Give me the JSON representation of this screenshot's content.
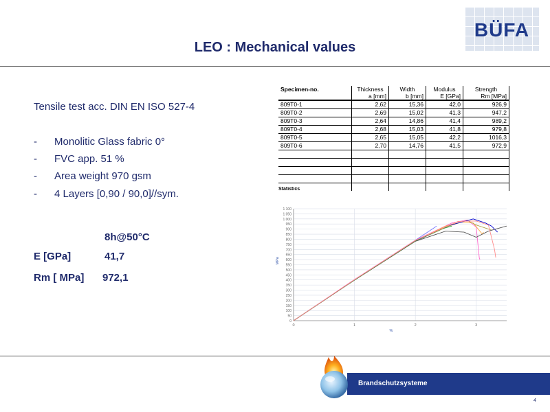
{
  "slide": {
    "title": "LEO : Mechanical  values",
    "logo_text": "BÜFA",
    "page_number": "4",
    "footer": "Brandschutzsysteme"
  },
  "content": {
    "test_line": "Tensile test acc. DIN EN ISO 527-4",
    "bullets": [
      "Monolitic Glass fabric 0°",
      "FVC app. 51 %",
      "Area weight  970 gsm",
      "4 Layers   [0,90 / 90,0]//sym."
    ],
    "condition": "8h@50°C",
    "e_label": "E [GPa]",
    "e_value": "41,7",
    "rm_label": "Rm [ MPa]",
    "rm_value": "972,1"
  },
  "table": {
    "headers": [
      {
        "line1": "Specimen-no.",
        "line2": ""
      },
      {
        "line1": "Thickness",
        "line2": "a [mm]"
      },
      {
        "line1": "Width",
        "line2": "b [mm]"
      },
      {
        "line1": "Modulus",
        "line2": "E [GPa]"
      },
      {
        "line1": "Strength",
        "line2": "Rm [MPa]"
      }
    ],
    "rows": [
      [
        "809T0-1",
        "2,62",
        "15,36",
        "42,0",
        "926,9"
      ],
      [
        "809T0-2",
        "2,69",
        "15,02",
        "41,3",
        "947,2"
      ],
      [
        "809T0-3",
        "2,64",
        "14,86",
        "41,4",
        "989,2"
      ],
      [
        "809T0-4",
        "2,68",
        "15,03",
        "41,8",
        "979,8"
      ],
      [
        "809T0-5",
        "2,65",
        "15,05",
        "42,2",
        "1016,3"
      ],
      [
        "809T0-6",
        "2,70",
        "14,76",
        "41,5",
        "972,9"
      ]
    ],
    "empty_rows": 5,
    "statistics_label": "Statistics"
  },
  "chart_data": {
    "type": "line",
    "title": "",
    "xlabel": "%",
    "ylabel": "MPa",
    "xlim": [
      0,
      3.5
    ],
    "ylim": [
      0,
      1100
    ],
    "x_ticks": [
      "0",
      "1",
      "2",
      "3"
    ],
    "y_ticks": [
      "0",
      "50",
      "100",
      "150",
      "200",
      "250",
      "300",
      "350",
      "400",
      "450",
      "500",
      "550",
      "600",
      "650",
      "700",
      "750",
      "800",
      "850",
      "900",
      "950",
      "1 000",
      "1 050",
      "1 100"
    ],
    "grid": true,
    "series": [
      {
        "color": "#7777ff",
        "points": [
          [
            0,
            0
          ],
          [
            1,
            400
          ],
          [
            2,
            790
          ],
          [
            2.3,
            910
          ],
          [
            2.35,
            930
          ]
        ]
      },
      {
        "color": "#ff66cc",
        "points": [
          [
            0,
            0
          ],
          [
            1,
            405
          ],
          [
            2,
            790
          ],
          [
            2.6,
            960
          ],
          [
            2.85,
            990
          ],
          [
            3.0,
            920
          ],
          [
            3.05,
            620
          ],
          [
            3.06,
            600
          ]
        ]
      },
      {
        "color": "#ffaa44",
        "points": [
          [
            0,
            0
          ],
          [
            1,
            400
          ],
          [
            2,
            785
          ],
          [
            2.5,
            930
          ],
          [
            2.75,
            970
          ],
          [
            2.95,
            960
          ],
          [
            3.1,
            850
          ],
          [
            3.12,
            870
          ]
        ]
      },
      {
        "color": "#b3a34a",
        "points": [
          [
            0,
            0
          ],
          [
            1,
            398
          ],
          [
            2,
            780
          ],
          [
            2.55,
            930
          ],
          [
            2.85,
            985
          ],
          [
            3.0,
            940
          ],
          [
            3.2,
            900
          ],
          [
            3.25,
            890
          ]
        ]
      },
      {
        "color": "#0000cc",
        "points": [
          [
            0,
            0
          ],
          [
            1,
            400
          ],
          [
            2,
            782
          ],
          [
            2.55,
            935
          ],
          [
            2.95,
            1000
          ],
          [
            3.15,
            960
          ],
          [
            3.25,
            930
          ],
          [
            3.35,
            870
          ]
        ]
      },
      {
        "color": "#555555",
        "points": [
          [
            0,
            0
          ],
          [
            1,
            398
          ],
          [
            2,
            780
          ],
          [
            2.5,
            880
          ],
          [
            2.8,
            870
          ],
          [
            3.0,
            820
          ],
          [
            3.2,
            880
          ],
          [
            3.5,
            930
          ]
        ]
      },
      {
        "color": "#33aa33",
        "points": [
          [
            0,
            0
          ],
          [
            1,
            400
          ],
          [
            2,
            785
          ],
          [
            2.45,
            905
          ],
          [
            2.6,
            930
          ]
        ]
      },
      {
        "color": "#ff8888",
        "points": [
          [
            0,
            0
          ],
          [
            1,
            402
          ],
          [
            2,
            788
          ],
          [
            2.7,
            975
          ],
          [
            3.0,
            980
          ],
          [
            3.2,
            940
          ],
          [
            3.3,
            700
          ],
          [
            3.32,
            620
          ]
        ]
      }
    ]
  }
}
